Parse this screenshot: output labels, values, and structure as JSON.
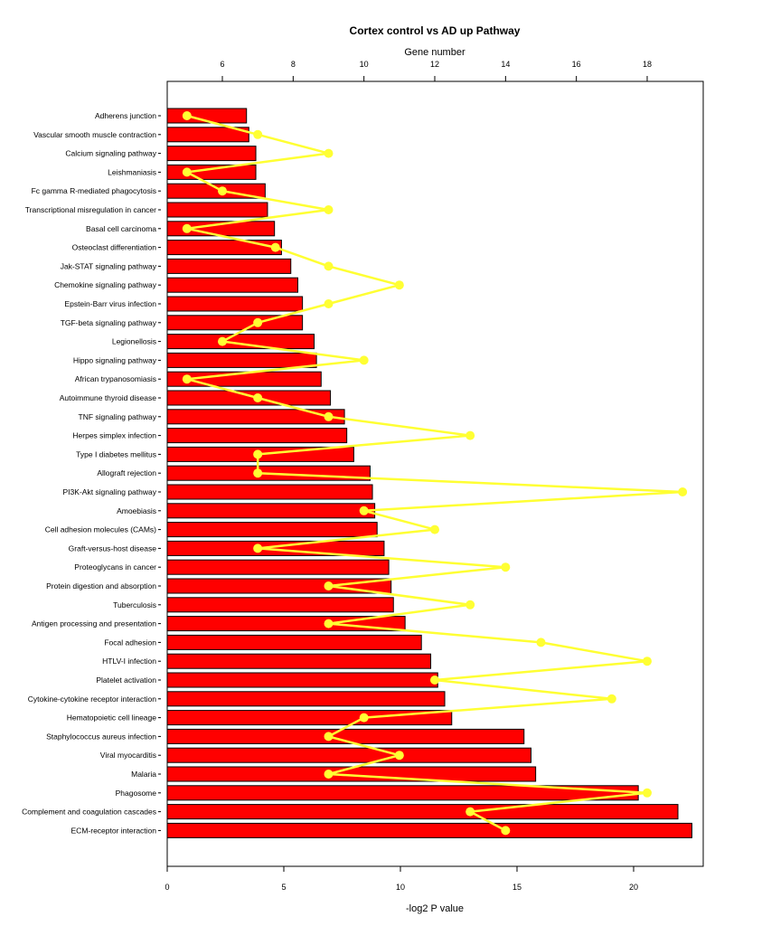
{
  "chart_data": {
    "type": "bar",
    "orientation": "horizontal",
    "title": "Cortex control vs AD up Pathway",
    "xlabel": "-log2 P value",
    "top_axis_label": "Gene number",
    "xlim": [
      0,
      23
    ],
    "x_ticks": [
      0,
      5,
      10,
      15,
      20
    ],
    "top_lim": [
      3.4,
      18.8
    ],
    "top_ticks": [
      6,
      8,
      10,
      12,
      14,
      16,
      18
    ],
    "bar_color": "#ff0000",
    "line_color": "#ffff33",
    "categories": [
      "Adherens junction",
      "Vascular smooth muscle contraction",
      "Calcium signaling pathway",
      "Leishmaniasis",
      "Fc gamma R-mediated phagocytosis",
      "Transcriptional misregulation in cancer",
      "Basal cell carcinoma",
      "Osteoclast differentiation",
      "Jak-STAT signaling pathway",
      "Chemokine signaling pathway",
      "Epstein-Barr virus infection",
      "TGF-beta signaling pathway",
      "Legionellosis",
      "Hippo signaling pathway",
      "African trypanosomiasis",
      "Autoimmune thyroid disease",
      "TNF signaling pathway",
      "Herpes simplex infection",
      "Type I diabetes mellitus",
      "Allograft rejection",
      "PI3K-Akt signaling pathway",
      "Amoebiasis",
      "Cell adhesion molecules (CAMs)",
      "Graft-versus-host disease",
      "Proteoglycans in cancer",
      "Protein digestion and absorption",
      "Tuberculosis",
      "Antigen processing and presentation",
      "Focal adhesion",
      "HTLV-I infection",
      "Platelet activation",
      "Cytokine-cytokine receptor interaction",
      "Hematopoietic cell lineage",
      "Staphylococcus aureus infection",
      "Viral myocarditis",
      "Malaria",
      "Phagosome",
      "Complement and coagulation cascades",
      "ECM-receptor interaction"
    ],
    "series": [
      {
        "type": "bar",
        "values": [
          3.4,
          3.5,
          3.8,
          3.8,
          4.2,
          4.3,
          4.6,
          4.9,
          5.3,
          5.6,
          5.8,
          5.8,
          6.3,
          6.4,
          6.6,
          7.0,
          7.6,
          7.7,
          8.0,
          8.7,
          8.8,
          8.9,
          9.0,
          9.3,
          9.5,
          9.6,
          9.7,
          10.2,
          10.9,
          11.3,
          11.6,
          11.9,
          12.2,
          15.3,
          15.6,
          15.8,
          20.2,
          21.9,
          22.5
        ]
      },
      {
        "type": "line",
        "axis": "top",
        "values": [
          5,
          7,
          9,
          5,
          6,
          9,
          5,
          7.5,
          9,
          11,
          9,
          7,
          6,
          10,
          5,
          7,
          9,
          13,
          7,
          7,
          19,
          10,
          12,
          7,
          14,
          9,
          13,
          9,
          15,
          18,
          12,
          17,
          10,
          9,
          11,
          9,
          18,
          13,
          14
        ]
      }
    ]
  }
}
